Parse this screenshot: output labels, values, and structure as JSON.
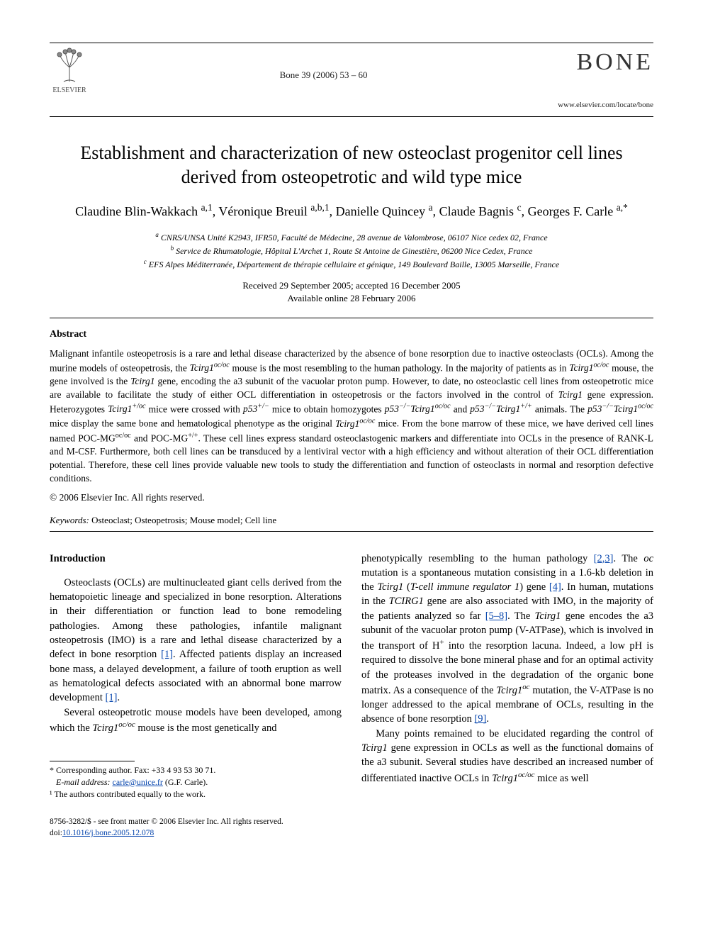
{
  "header": {
    "publisher_name": "ELSEVIER",
    "citation": "Bone 39 (2006) 53 – 60",
    "journal_logo": "BONE",
    "journal_url": "www.elsevier.com/locate/bone"
  },
  "title": "Establishment and characterization of new osteoclast progenitor cell lines derived from osteopetrotic and wild type mice",
  "authors_html": "Claudine Blin-Wakkach <span class='sup'>a,1</span>, Véronique Breuil <span class='sup'>a,b,1</span>, Danielle Quincey <span class='sup'>a</span>, Claude Bagnis <span class='sup'>c</span>, Georges F. Carle <span class='sup'>a,*</span>",
  "affiliations": {
    "a": "CNRS/UNSA Unité K2943, IFR50, Faculté de Médecine, 28 avenue de Valombrose, 06107 Nice cedex 02, France",
    "b": "Service de Rhumatologie, Hôpital L'Archet 1, Route St Antoine de Ginestière, 06200 Nice Cedex, France",
    "c": "EFS Alpes Méditerranée, Département de thérapie cellulaire et génique, 149 Boulevard Baille, 13005 Marseille, France"
  },
  "dates": {
    "received_accepted": "Received 29 September 2005; accepted 16 December 2005",
    "online": "Available online 28 February 2006"
  },
  "abstract": {
    "label": "Abstract",
    "body_html": "Malignant infantile osteopetrosis is a rare and lethal disease characterized by the absence of bone resorption due to inactive osteoclasts (OCLs). Among the murine models of osteopetrosis, the <span class='ital'>Tcirg1<span class='sup'>oc/oc</span></span> mouse is the most resembling to the human pathology. In the majority of patients as in <span class='ital'>Tcirg1<span class='sup'>oc/oc</span></span> mouse, the gene involved is the <span class='ital'>Tcirg1</span> gene, encoding the a3 subunit of the vacuolar proton pump. However, to date, no osteoclastic cell lines from osteopetrotic mice are available to facilitate the study of either OCL differentiation in osteopetrosis or the factors involved in the control of <span class='ital'>Tcirg1</span> gene expression. Heterozygotes <span class='ital'>Tcirg1<span class='sup'>+/oc</span></span> mice were crossed with <span class='ital'>p53<span class='sup'>+/−</span></span> mice to obtain homozygotes <span class='ital'>p53<span class='sup'>−/−</span>Tcirg1<span class='sup'>oc/oc</span></span> and <span class='ital'>p53<span class='sup'>−/−</span>Tcirg1<span class='sup'>+/+</span></span> animals. The <span class='ital'>p53<span class='sup'>−/−</span>Tcirg1<span class='sup'>oc/oc</span></span> mice display the same bone and hematological phenotype as the original <span class='ital'>Tcirg1<span class='sup'>oc/oc</span></span> mice. From the bone marrow of these mice, we have derived cell lines named POC-MG<span class='sup'>oc/oc</span> and POC-MG<span class='sup'>+/+</span>. These cell lines express standard osteoclastogenic markers and differentiate into OCLs in the presence of RANK-L and M-CSF. Furthermore, both cell lines can be transduced by a lentiviral vector with a high efficiency and without alteration of their OCL differentiation potential. Therefore, these cell lines provide valuable new tools to study the differentiation and function of osteoclasts in normal and resorption defective conditions.",
    "copyright": "© 2006 Elsevier Inc. All rights reserved."
  },
  "keywords": {
    "label": "Keywords:",
    "text": "Osteoclast; Osteopetrosis; Mouse model; Cell line"
  },
  "intro": {
    "heading": "Introduction",
    "left_p1_html": "Osteoclasts (OCLs) are multinucleated giant cells derived from the hematopoietic lineage and specialized in bone resorption. Alterations in their differentiation or function lead to bone remodeling pathologies. Among these pathologies, infantile malignant osteopetrosis (IMO) is a rare and lethal disease characterized by a defect in bone resorption <a class='cite-link' href='#'>[1]</a>. Affected patients display an increased bone mass, a delayed development, a failure of tooth eruption as well as hematological defects associated with an abnormal bone marrow development <a class='cite-link' href='#'>[1]</a>.",
    "left_p2_html": "Several osteopetrotic mouse models have been developed, among which the <span class='ital'>Tcirg1<span class='sup'>oc/oc</span></span> mouse is the most genetically and",
    "right_p1_html": "phenotypically resembling to the human pathology <a class='cite-link' href='#'>[2,3]</a>. The <span class='ital'>oc</span> mutation is a spontaneous mutation consisting in a 1.6-kb deletion in the <span class='ital'>Tcirg1</span> (<span class='ital'>T-cell immune regulator 1</span>) gene <a class='cite-link' href='#'>[4]</a>. In human, mutations in the <span class='ital'>TCIRG1</span> gene are also associated with IMO, in the majority of the patients analyzed so far <a class='cite-link' href='#'>[5–8]</a>. The <span class='ital'>Tcirg1</span> gene encodes the a3 subunit of the vacuolar proton pump (V-ATPase), which is involved in the transport of H<span class='sup'>+</span> into the resorption lacuna. Indeed, a low pH is required to dissolve the bone mineral phase and for an optimal activity of the proteases involved in the degradation of the organic bone matrix. As a consequence of the <span class='ital'>Tcirg1<span class='sup'>oc</span></span> mutation, the V-ATPase is no longer addressed to the apical membrane of OCLs, resulting in the absence of bone resorption <a class='cite-link' href='#'>[9]</a>.",
    "right_p2_html": "Many points remained to be elucidated regarding the control of <span class='ital'>Tcirg1</span> gene expression in OCLs as well as the functional domains of the a3 subunit. Several studies have described an increased number of differentiated inactive OCLs in <span class='ital'>Tcirg1<span class='sup'>oc/oc</span></span> mice as well"
  },
  "footnotes": {
    "corr": "* Corresponding author. Fax: +33 4 93 53 30 71.",
    "email_label": "E-mail address:",
    "email": "carle@unice.fr",
    "email_tail": "(G.F. Carle).",
    "shared": "¹ The authors contributed equally to the work."
  },
  "footer": {
    "left": "8756-3282/$ - see front matter © 2006 Elsevier Inc. All rights reserved.",
    "doi_label": "doi:",
    "doi": "10.1016/j.bone.2005.12.078"
  },
  "colors": {
    "link": "#0645ad",
    "text": "#000000",
    "background": "#ffffff"
  }
}
